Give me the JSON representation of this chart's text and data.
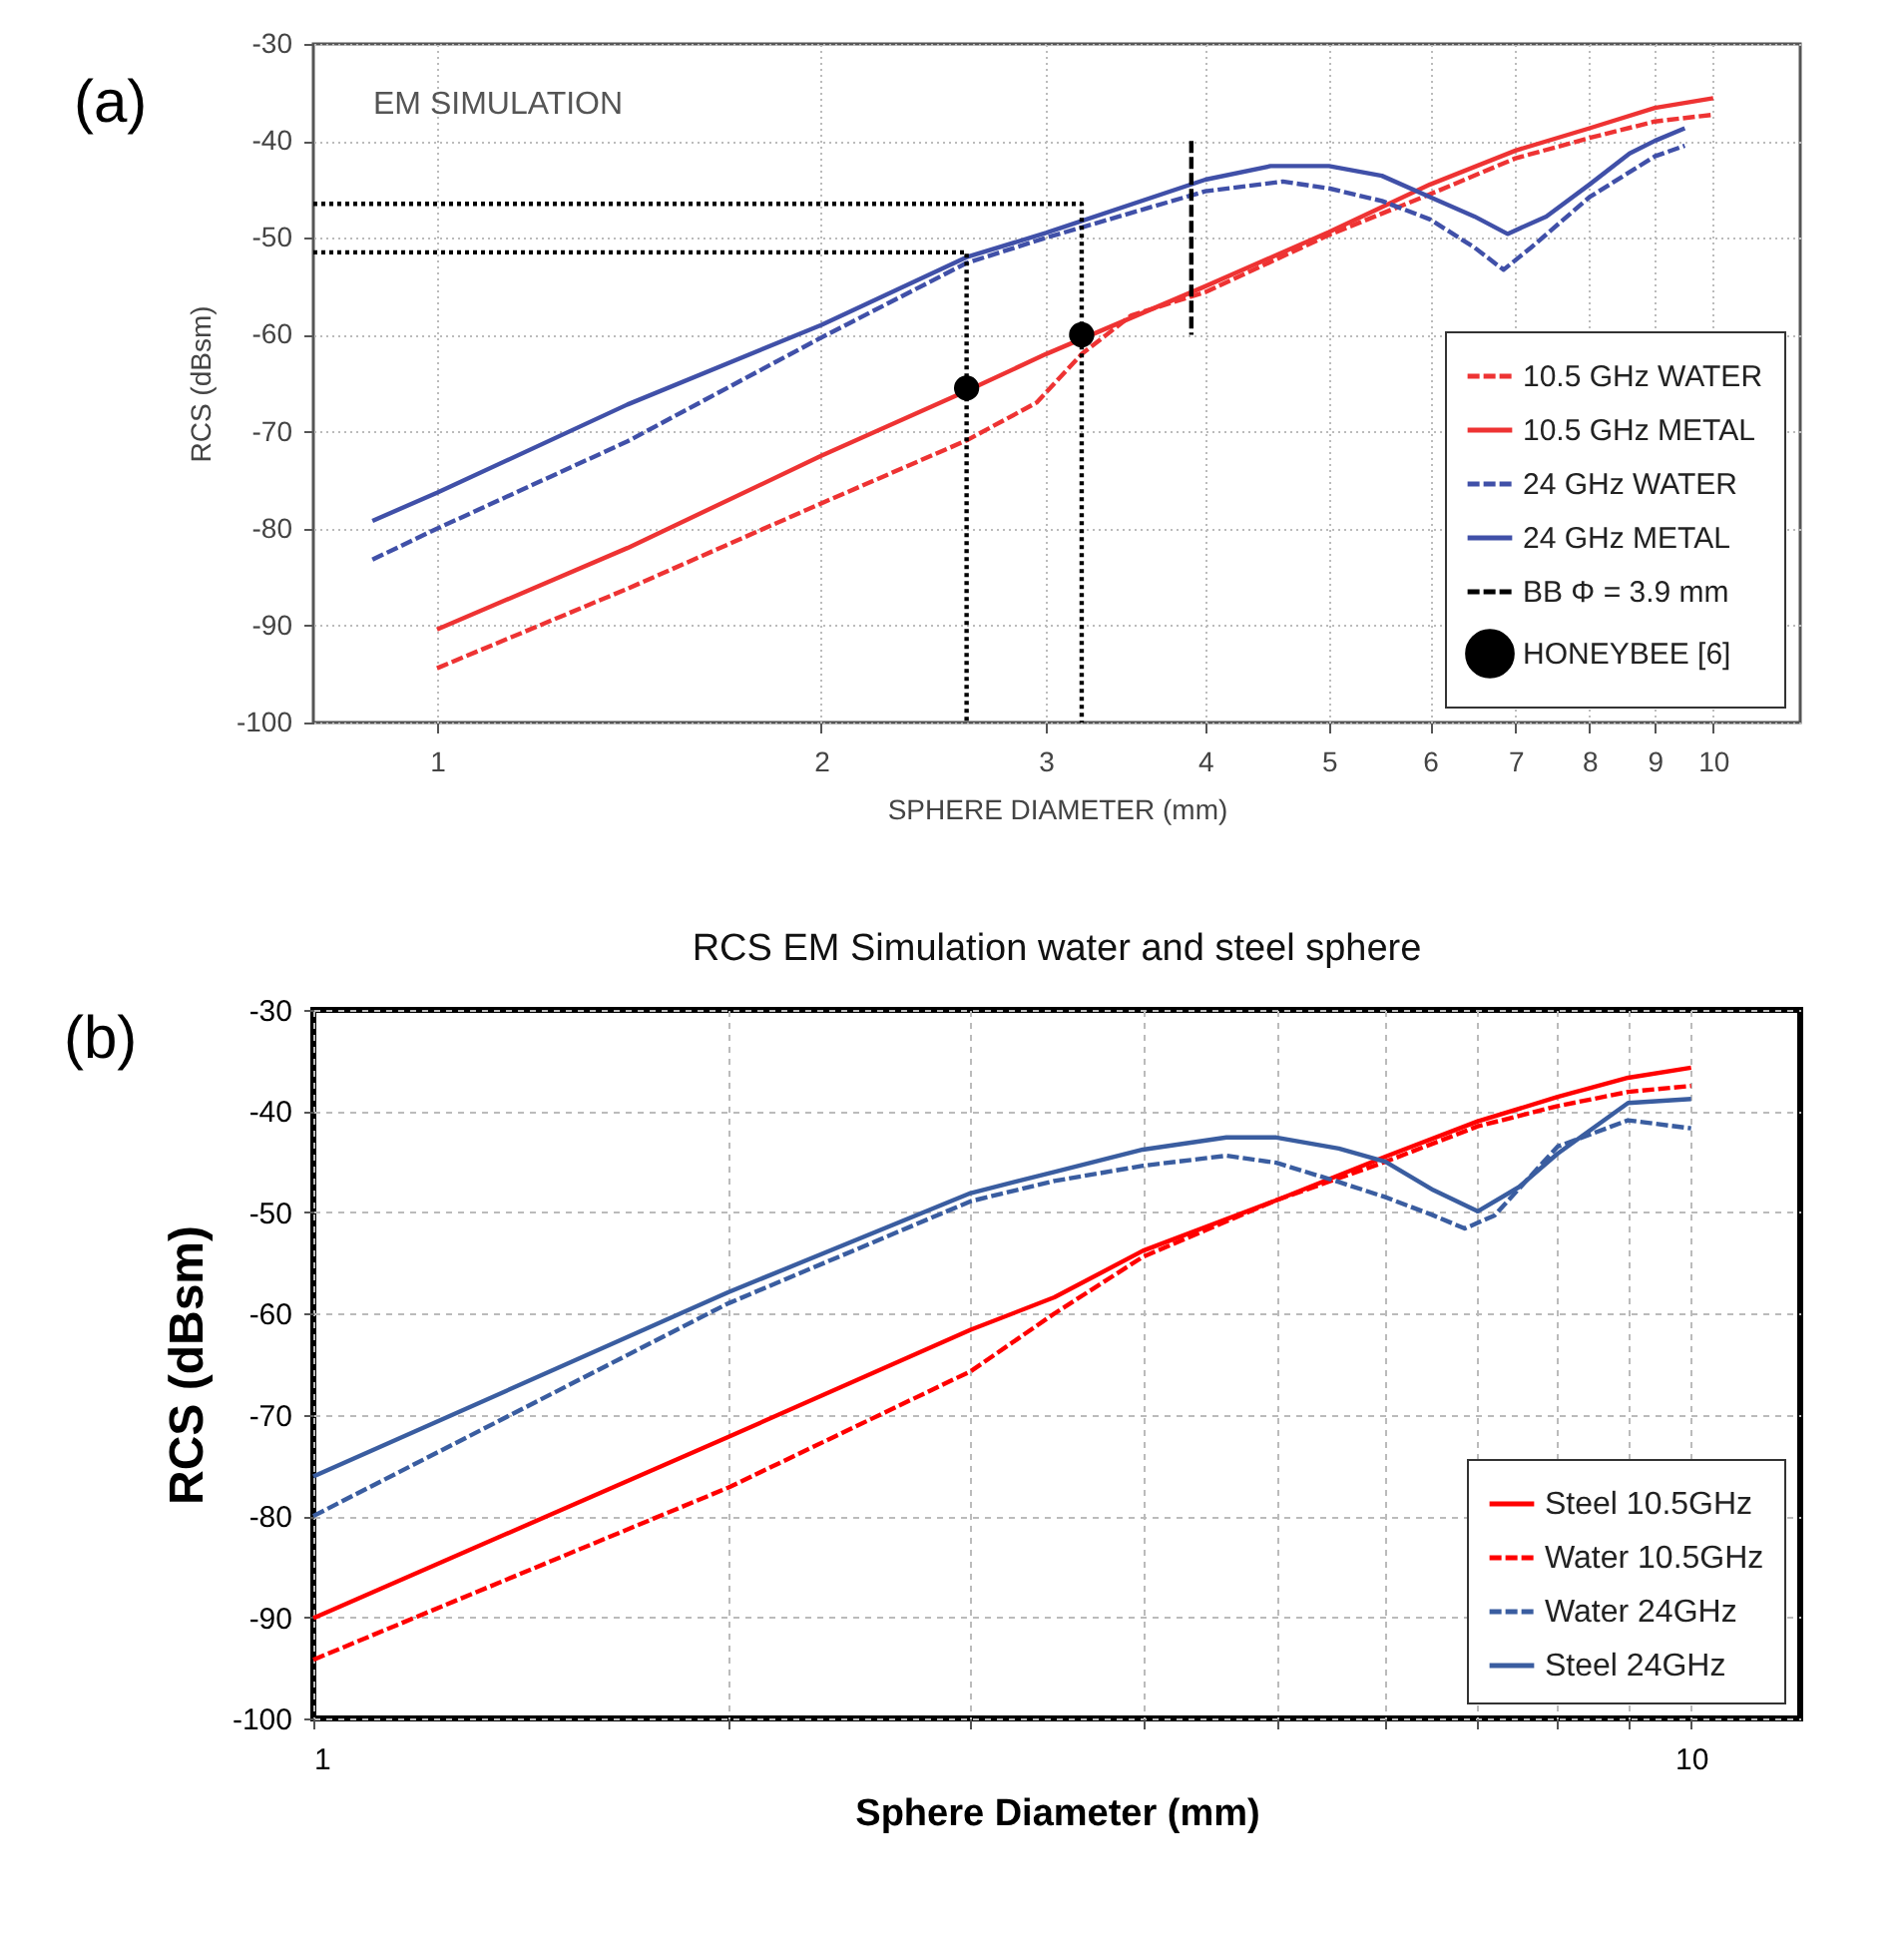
{
  "chart_data": [
    {
      "type": "line",
      "xlabel": "SPHERE DIAMETER (mm)",
      "ylabel": "RCS (dBsm)",
      "annotations": [
        "(a)",
        "EM SIMULATION"
      ],
      "log": "x",
      "xlim": [
        0.8,
        11.7
      ],
      "ylim": [
        -100,
        -30
      ],
      "xticks": [
        1,
        2,
        3,
        4,
        5,
        6,
        7,
        8,
        9,
        10
      ],
      "yticks": [
        -100,
        -90,
        -80,
        -70,
        -60,
        -50,
        -40,
        -30
      ],
      "grid": true,
      "legend": "bottom right",
      "series": [
        {
          "name": "10.5 GHz WATER",
          "type": "line",
          "color": "#ee3333",
          "line_style": "dashed",
          "x": [
            1,
            1.41,
            2,
            2.6,
            2.95,
            3.2,
            3.5,
            4,
            5,
            6,
            7,
            8,
            9,
            10
          ],
          "values": [
            -94.4,
            -86.2,
            -77.4,
            -70.9,
            -67,
            -62,
            -58,
            -55.6,
            -49.7,
            -45.5,
            -41.8,
            -39.7,
            -38,
            -37.3
          ]
        },
        {
          "name": "10.5 GHz METAL",
          "type": "line",
          "color": "#ee3333",
          "line_style": "solid",
          "x": [
            1,
            1.41,
            2,
            2.6,
            3,
            4,
            5,
            6,
            7,
            8,
            9,
            10
          ],
          "values": [
            -90.4,
            -82,
            -72.5,
            -65.8,
            -62,
            -55,
            -49.4,
            -44.5,
            -41,
            -38.7,
            -36.6,
            -35.6
          ]
        },
        {
          "name": "24 GHz WATER",
          "type": "line",
          "color": "#4050a8",
          "line_style": "dashed",
          "x": [
            0.89,
            1,
            1.41,
            2,
            2.6,
            3,
            4,
            4.6,
            5,
            5.5,
            6,
            6.5,
            6.85,
            7.2,
            8,
            9,
            9.5
          ],
          "values": [
            -83.2,
            -80,
            -71,
            -60.3,
            -52.6,
            -50,
            -45.2,
            -44.2,
            -44.9,
            -46.2,
            -48.1,
            -51,
            -53.3,
            -51,
            -45.8,
            -41.6,
            -40.5
          ]
        },
        {
          "name": "24 GHz METAL",
          "type": "line",
          "color": "#4050a8",
          "line_style": "solid",
          "x": [
            0.89,
            1,
            1.41,
            2,
            2.6,
            3,
            4,
            4.5,
            5,
            5.5,
            6,
            6.5,
            6.9,
            7.4,
            8,
            8.6,
            9,
            9.5
          ],
          "values": [
            -79.2,
            -76.3,
            -67.2,
            -59,
            -52,
            -49.5,
            -44,
            -42.6,
            -42.6,
            -43.6,
            -45.8,
            -47.8,
            -49.6,
            -47.8,
            -44.5,
            -41.3,
            -40,
            -38.7
          ]
        },
        {
          "name": "BB Φ = 3.9 mm",
          "type": "line",
          "color": "#000000",
          "line_style": "dashed",
          "x": [
            3.9,
            3.9
          ],
          "values": [
            -40,
            -60
          ]
        },
        {
          "type": "line",
          "color": "#000000",
          "line_style": "dotted",
          "x": [
            0.8,
            2.6,
            2.6
          ],
          "values": [
            -51.5,
            -51.5,
            -100
          ]
        },
        {
          "type": "line",
          "color": "#000000",
          "line_style": "dotted",
          "x": [
            0.8,
            3.2,
            3.2
          ],
          "values": [
            -46.5,
            -46.5,
            -100
          ]
        },
        {
          "name": "HONEYBEE [6]",
          "type": "scatter",
          "marker": "circle",
          "color": "#000000",
          "x": [
            2.6,
            3.2
          ],
          "values": [
            -65.5,
            -60
          ]
        }
      ]
    },
    {
      "type": "line",
      "title": "RCS EM Simulation water and steel sphere",
      "xlabel": "Sphere Diameter (mm)",
      "ylabel": "RCS (dBsm)",
      "annotations": [
        "(b)"
      ],
      "log": "x",
      "xlim": [
        1,
        12
      ],
      "ylim": [
        -100,
        -30
      ],
      "xticks": [
        1,
        {
          "value": 2,
          "label": null
        },
        {
          "value": 3,
          "label": null
        },
        {
          "value": 4,
          "label": null
        },
        {
          "value": 5,
          "label": null
        },
        {
          "value": 6,
          "label": null
        },
        {
          "value": 7,
          "label": null
        },
        {
          "value": 8,
          "label": null
        },
        {
          "value": 9,
          "label": null
        },
        10
      ],
      "yticks": [
        -100,
        -90,
        -80,
        -70,
        -60,
        -50,
        -40,
        -30
      ],
      "grid": true,
      "legend": "bottom right",
      "series": [
        {
          "name": "Steel 10.5GHz",
          "type": "line",
          "color": "#ff0000",
          "line_style": "solid",
          "x": [
            1,
            2,
            3,
            3.45,
            4,
            5,
            6,
            7,
            8,
            9,
            10
          ],
          "values": [
            -90.1,
            -72.2,
            -61.6,
            -58.4,
            -53.8,
            -48.8,
            -44.5,
            -41,
            -38.6,
            -36.7,
            -35.7
          ]
        },
        {
          "name": "Water 10.5GHz",
          "type": "line",
          "color": "#ff0000",
          "line_style": "dashed",
          "x": [
            1,
            2,
            3,
            3.45,
            4,
            5,
            6,
            7,
            8,
            9,
            10
          ],
          "values": [
            -94.2,
            -77.2,
            -65.7,
            -60,
            -54.4,
            -48.8,
            -45,
            -41.5,
            -39.5,
            -38.1,
            -37.5
          ]
        },
        {
          "name": "Water 24GHz",
          "type": "line",
          "color": "#3a5da0",
          "line_style": "dashed",
          "x": [
            1,
            2,
            3,
            3.45,
            4,
            4.6,
            5,
            5.55,
            6,
            6.5,
            6.85,
            7.2,
            8,
            9,
            10
          ],
          "values": [
            -80,
            -59,
            -48.9,
            -46.9,
            -45.4,
            -44.4,
            -45.1,
            -47,
            -48.5,
            -50.3,
            -51.6,
            -50.3,
            -43.5,
            -40.9,
            -41.7
          ]
        },
        {
          "name": "Steel 24GHz",
          "type": "line",
          "color": "#3a5da0",
          "line_style": "solid",
          "x": [
            1,
            2,
            3,
            3.45,
            4,
            4.6,
            5,
            5.55,
            6,
            6.5,
            7,
            7.5,
            8,
            9,
            10
          ],
          "values": [
            -76.1,
            -57.9,
            -48.1,
            -46,
            -43.8,
            -42.6,
            -42.6,
            -43.7,
            -45,
            -47.8,
            -49.9,
            -47.5,
            -44.2,
            -39.2,
            -38.8
          ]
        }
      ]
    }
  ]
}
